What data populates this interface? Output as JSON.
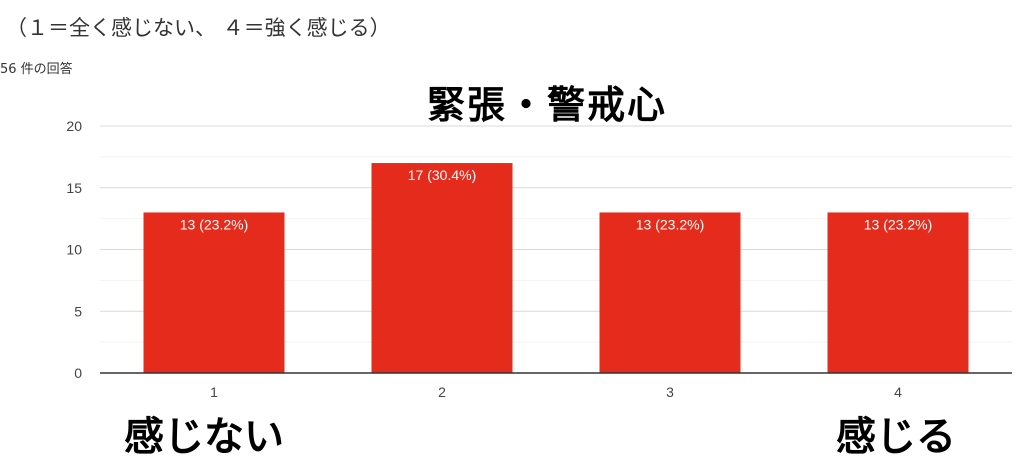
{
  "subtitle": "（１＝全く感じない、 ４＝強く感じる）",
  "responses_label": "56 件の回答",
  "chart_data": {
    "type": "bar",
    "title": "緊張・警戒心",
    "categories": [
      "1",
      "2",
      "3",
      "4"
    ],
    "values": [
      13,
      17,
      13,
      13
    ],
    "data_labels": [
      "13 (23.2%)",
      "17 (30.4%)",
      "13 (23.2%)",
      "13 (23.2%)"
    ],
    "y_ticks": [
      "0",
      "5",
      "10",
      "15",
      "20"
    ],
    "ylim": [
      0,
      20
    ],
    "grid": true,
    "bar_color": "#e52b1c",
    "xlabel": "",
    "ylabel": ""
  },
  "annotations": {
    "low_label": "感じない",
    "high_label": "感じる"
  }
}
